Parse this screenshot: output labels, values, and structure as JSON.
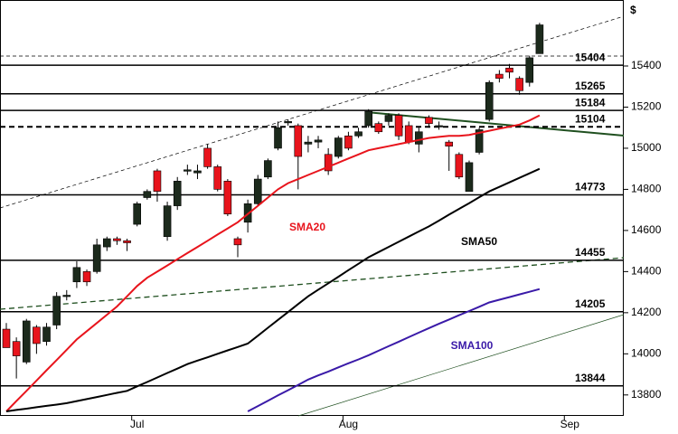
{
  "chart_data": {
    "type": "candlestick",
    "currency_label": "$",
    "categories": [
      null,
      null,
      null,
      null,
      null,
      null,
      null,
      null,
      null,
      null,
      null,
      null,
      null,
      "Jul",
      null,
      null,
      null,
      null,
      null,
      null,
      null,
      null,
      null,
      null,
      null,
      null,
      null,
      null,
      null,
      null,
      null,
      null,
      null,
      null,
      "Aug",
      null,
      null,
      null,
      null,
      null,
      null,
      null,
      null,
      null,
      null,
      null,
      null,
      null,
      null,
      null,
      null,
      null,
      null,
      null,
      null,
      null,
      "Sep",
      null,
      null,
      null,
      null,
      null
    ],
    "open": [
      14120,
      14060,
      13960,
      14130,
      14060,
      14140,
      14280,
      14350,
      14400,
      14400,
      14520,
      14560,
      14550,
      14630,
      14760,
      14890,
      14570,
      14720,
      14890,
      14880,
      15000,
      14910,
      14840,
      14560,
      14640,
      14730,
      14860,
      15000,
      15130,
      15110,
      15020,
      15030,
      14970,
      14960,
      15060,
      15060,
      15110,
      15120,
      15130,
      15160,
      15110,
      15020,
      15150,
      15110,
      15030,
      14970,
      14790,
      14980,
      15140,
      15360,
      15390,
      15340,
      15320,
      15460,
      null,
      null,
      null,
      null,
      null,
      null,
      null,
      null
    ],
    "high": [
      14150,
      14080,
      14170,
      14140,
      14150,
      14300,
      14310,
      14450,
      14410,
      14560,
      14570,
      14570,
      14560,
      14740,
      14800,
      14900,
      14740,
      14860,
      14920,
      14920,
      15020,
      14920,
      14850,
      14570,
      14750,
      14870,
      14950,
      15130,
      15140,
      15120,
      15060,
      15060,
      15000,
      15060,
      15080,
      15100,
      15190,
      15130,
      15170,
      15170,
      15130,
      15100,
      15160,
      15130,
      15040,
      14980,
      14940,
      15100,
      15330,
      15380,
      15410,
      15350,
      15450,
      15610,
      null,
      null,
      null,
      null,
      null,
      null,
      null,
      null
    ],
    "low": [
      14030,
      13880,
      13950,
      14000,
      14040,
      14120,
      14260,
      14320,
      14330,
      14390,
      14500,
      14530,
      14500,
      14620,
      14750,
      14740,
      14550,
      14700,
      14870,
      14850,
      14900,
      14790,
      14670,
      14470,
      14590,
      14720,
      14850,
      14990,
      15110,
      14800,
      14980,
      15000,
      14870,
      14950,
      14990,
      15050,
      15100,
      15070,
      15110,
      15040,
      15020,
      14980,
      15100,
      15090,
      14890,
      14850,
      14790,
      14970,
      15130,
      15320,
      15340,
      15260,
      15300,
      15460,
      null,
      null,
      null,
      null,
      null,
      null,
      null,
      null
    ],
    "close": [
      14030,
      13990,
      14160,
      14050,
      14130,
      14280,
      14285,
      14420,
      14350,
      14530,
      14560,
      14550,
      14540,
      14730,
      14790,
      14790,
      14720,
      14840,
      14895,
      14890,
      14910,
      14800,
      14680,
      14530,
      14730,
      14850,
      14940,
      15100,
      15130,
      14960,
      15030,
      15040,
      14890,
      15050,
      15000,
      15080,
      15180,
      15080,
      15160,
      15060,
      15030,
      15080,
      15120,
      15110,
      15010,
      14860,
      14930,
      15090,
      15320,
      15340,
      15370,
      15280,
      15440,
      15600,
      null,
      null,
      null,
      null,
      null,
      null,
      null,
      null
    ],
    "up_color": "#1c2a1c",
    "down_color": "#e8141c",
    "series": [
      {
        "name": "SMA20",
        "color": "#e8141c",
        "values": [
          13720,
          13770,
          13820,
          13870,
          13920,
          13970,
          14020,
          14070,
          14110,
          14150,
          14190,
          14230,
          14280,
          14330,
          14370,
          14400,
          14430,
          14460,
          14490,
          14520,
          14550,
          14580,
          14610,
          14640,
          14680,
          14720,
          14760,
          14800,
          14830,
          14850,
          14870,
          14890,
          14910,
          14930,
          14950,
          14970,
          14990,
          15000,
          15010,
          15020,
          15030,
          15040,
          15050,
          15055,
          15060,
          15060,
          15065,
          15075,
          15085,
          15095,
          15105,
          15115,
          15135,
          15160,
          null,
          null,
          null,
          null,
          null,
          null,
          null,
          null
        ]
      },
      {
        "name": "SMA50",
        "color": "#000000",
        "values": [
          13720,
          13727,
          13733,
          13740,
          13747,
          13753,
          13760,
          13770,
          13780,
          13790,
          13800,
          13810,
          13820,
          13842,
          13863,
          13885,
          13907,
          13928,
          13950,
          13967,
          13983,
          14000,
          14017,
          14033,
          14050,
          14088,
          14127,
          14165,
          14203,
          14242,
          14280,
          14312,
          14343,
          14375,
          14407,
          14438,
          14470,
          14495,
          14520,
          14545,
          14570,
          14595,
          14620,
          14648,
          14677,
          14705,
          14733,
          14762,
          14790,
          14812,
          14834,
          14856,
          14878,
          14900,
          null,
          null,
          null,
          null,
          null,
          null,
          null,
          null
        ]
      },
      {
        "name": "SMA100",
        "color": "#3a1aa8",
        "values": [
          null,
          null,
          null,
          null,
          null,
          null,
          null,
          null,
          null,
          null,
          null,
          null,
          null,
          null,
          null,
          null,
          null,
          null,
          null,
          null,
          null,
          null,
          null,
          null,
          13720,
          13746,
          13772,
          13798,
          13823,
          13849,
          13875,
          13895,
          13914,
          13934,
          13954,
          13973,
          13993,
          14015,
          14037,
          14059,
          14081,
          14103,
          14125,
          14146,
          14167,
          14188,
          14208,
          14229,
          14250,
          14263,
          14276,
          14289,
          14302,
          14315,
          null,
          null,
          null,
          null,
          null,
          null,
          null,
          null
        ]
      }
    ],
    "ylim": [
      13698,
      15721
    ],
    "yticks": [
      13800,
      14000,
      14200,
      14400,
      14600,
      14800,
      15000,
      15200,
      15400
    ],
    "levels": [
      {
        "value": 15404,
        "style": "solid"
      },
      {
        "value": 15265,
        "style": "solid"
      },
      {
        "value": 15184,
        "style": "solid"
      },
      {
        "value": 15104,
        "style": "dashed"
      },
      {
        "value": 14773,
        "style": "solid"
      },
      {
        "value": 14455,
        "style": "solid"
      },
      {
        "value": 14205,
        "style": "solid"
      },
      {
        "value": 13844,
        "style": "solid"
      }
    ]
  }
}
